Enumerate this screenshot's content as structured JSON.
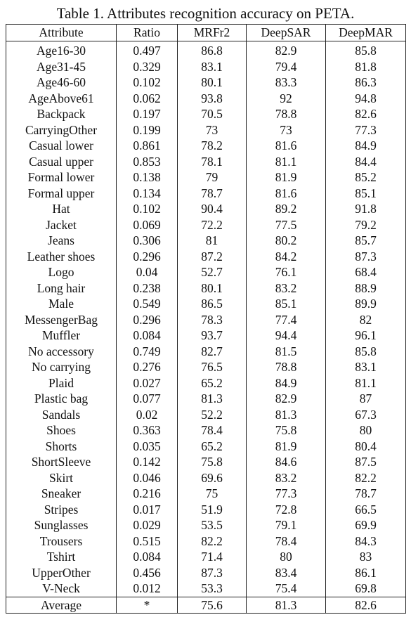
{
  "caption": "Table 1. Attributes recognition accuracy on PETA.",
  "headers": [
    "Attribute",
    "Ratio",
    "MRFr2",
    "DeepSAR",
    "DeepMAR"
  ],
  "rows": [
    {
      "attr": "Age16-30",
      "ratio": "0.497",
      "v": [
        "86.8",
        "82.9",
        "85.8"
      ],
      "best": 0
    },
    {
      "attr": "Age31-45",
      "ratio": "0.329",
      "v": [
        "83.1",
        "79.4",
        "81.8"
      ],
      "best": 0
    },
    {
      "attr": "Age46-60",
      "ratio": "0.102",
      "v": [
        "80.1",
        "83.3",
        "86.3"
      ],
      "best": 2
    },
    {
      "attr": "AgeAbove61",
      "ratio": "0.062",
      "v": [
        "93.8",
        "92",
        "94.8"
      ],
      "best": 2
    },
    {
      "attr": "Backpack",
      "ratio": "0.197",
      "v": [
        "70.5",
        "78.8",
        "82.6"
      ],
      "best": 2
    },
    {
      "attr": "CarryingOther",
      "ratio": "0.199",
      "v": [
        "73",
        "73",
        "77.3"
      ],
      "best": 2
    },
    {
      "attr": "Casual lower",
      "ratio": "0.861",
      "v": [
        "78.2",
        "81.6",
        "84.9"
      ],
      "best": 2
    },
    {
      "attr": "Casual upper",
      "ratio": "0.853",
      "v": [
        "78.1",
        "81.1",
        "84.4"
      ],
      "best": 2
    },
    {
      "attr": "Formal lower",
      "ratio": "0.138",
      "v": [
        "79",
        "81.9",
        "85.2"
      ],
      "best": 2
    },
    {
      "attr": "Formal upper",
      "ratio": "0.134",
      "v": [
        "78.7",
        "81.6",
        "85.1"
      ],
      "best": 2
    },
    {
      "attr": "Hat",
      "ratio": "0.102",
      "v": [
        "90.4",
        "89.2",
        "91.8"
      ],
      "best": 2
    },
    {
      "attr": "Jacket",
      "ratio": "0.069",
      "v": [
        "72.2",
        "77.5",
        "79.2"
      ],
      "best": 2
    },
    {
      "attr": "Jeans",
      "ratio": "0.306",
      "v": [
        "81",
        "80.2",
        "85.7"
      ],
      "best": 2
    },
    {
      "attr": "Leather shoes",
      "ratio": "0.296",
      "v": [
        "87.2",
        "84.2",
        "87.3"
      ],
      "best": 2
    },
    {
      "attr": "Logo",
      "ratio": "0.04",
      "v": [
        "52.7",
        "76.1",
        "68.4"
      ],
      "best": 1
    },
    {
      "attr": "Long hair",
      "ratio": "0.238",
      "v": [
        "80.1",
        "83.2",
        "88.9"
      ],
      "best": 2
    },
    {
      "attr": "Male",
      "ratio": "0.549",
      "v": [
        "86.5",
        "85.1",
        "89.9"
      ],
      "best": 2
    },
    {
      "attr": "MessengerBag",
      "ratio": "0.296",
      "v": [
        "78.3",
        "77.4",
        "82"
      ],
      "best": 2
    },
    {
      "attr": "Muffler",
      "ratio": "0.084",
      "v": [
        "93.7",
        "94.4",
        "96.1"
      ],
      "best": 2
    },
    {
      "attr": "No accessory",
      "ratio": "0.749",
      "v": [
        "82.7",
        "81.5",
        "85.8"
      ],
      "best": 2
    },
    {
      "attr": "No carrying",
      "ratio": "0.276",
      "v": [
        "76.5",
        "78.8",
        "83.1"
      ],
      "best": 2
    },
    {
      "attr": "Plaid",
      "ratio": "0.027",
      "v": [
        "65.2",
        "84.9",
        "81.1"
      ],
      "best": 1
    },
    {
      "attr": "Plastic bag",
      "ratio": "0.077",
      "v": [
        "81.3",
        "82.9",
        "87"
      ],
      "best": 2
    },
    {
      "attr": "Sandals",
      "ratio": "0.02",
      "v": [
        "52.2",
        "81.3",
        "67.3"
      ],
      "best": 1
    },
    {
      "attr": "Shoes",
      "ratio": "0.363",
      "v": [
        "78.4",
        "75.8",
        "80"
      ],
      "best": 2
    },
    {
      "attr": "Shorts",
      "ratio": "0.035",
      "v": [
        "65.2",
        "81.9",
        "80.4"
      ],
      "best": 1
    },
    {
      "attr": "ShortSleeve",
      "ratio": "0.142",
      "v": [
        "75.8",
        "84.6",
        "87.5"
      ],
      "best": 2
    },
    {
      "attr": "Skirt",
      "ratio": "0.046",
      "v": [
        "69.6",
        "83.2",
        "82.2"
      ],
      "best": 1
    },
    {
      "attr": "Sneaker",
      "ratio": "0.216",
      "v": [
        "75",
        "77.3",
        "78.7"
      ],
      "best": 2
    },
    {
      "attr": "Stripes",
      "ratio": "0.017",
      "v": [
        "51.9",
        "72.8",
        "66.5"
      ],
      "best": 1
    },
    {
      "attr": "Sunglasses",
      "ratio": "0.029",
      "v": [
        "53.5",
        "79.1",
        "69.9"
      ],
      "best": 1
    },
    {
      "attr": "Trousers",
      "ratio": "0.515",
      "v": [
        "82.2",
        "78.4",
        "84.3"
      ],
      "best": 2
    },
    {
      "attr": "Tshirt",
      "ratio": "0.084",
      "v": [
        "71.4",
        "80",
        "83"
      ],
      "best": 2
    },
    {
      "attr": "UpperOther",
      "ratio": "0.456",
      "v": [
        "87.3",
        "83.4",
        "86.1"
      ],
      "best": 0
    },
    {
      "attr": "V-Neck",
      "ratio": "0.012",
      "v": [
        "53.3",
        "75.4",
        "69.8"
      ],
      "best": 1
    }
  ],
  "average": {
    "attr": "Average",
    "ratio": "*",
    "v": [
      "75.6",
      "81.3",
      "82.6"
    ],
    "best": 2
  }
}
